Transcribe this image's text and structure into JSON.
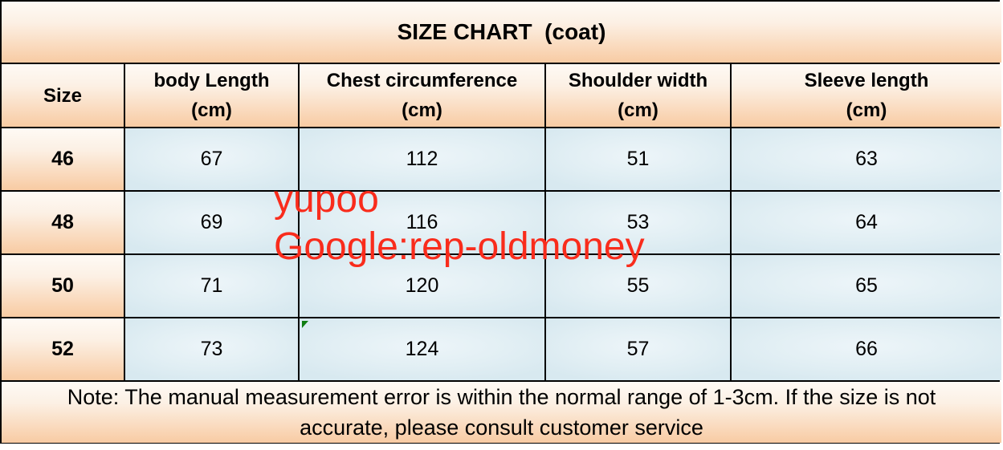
{
  "title": "SIZE CHART  (coat)",
  "header": {
    "columns": [
      {
        "label": "Size",
        "unit": ""
      },
      {
        "label": "body Length",
        "unit": "(cm)"
      },
      {
        "label": "Chest circumference",
        "unit": "(cm)"
      },
      {
        "label": "Shoulder width",
        "unit": "(cm)"
      },
      {
        "label": "Sleeve length",
        "unit": "(cm)"
      }
    ]
  },
  "rows": [
    {
      "size": "46",
      "body_length": "67",
      "chest": "112",
      "shoulder": "51",
      "sleeve": "63"
    },
    {
      "size": "48",
      "body_length": "69",
      "chest": "116",
      "shoulder": "53",
      "sleeve": "64"
    },
    {
      "size": "50",
      "body_length": "71",
      "chest": "120",
      "shoulder": "55",
      "sleeve": "65"
    },
    {
      "size": "52",
      "body_length": "73",
      "chest": "124",
      "shoulder": "57",
      "sleeve": "66"
    }
  ],
  "note": {
    "line1": "Note: The manual measurement error is within the normal range of 1-3cm. If the size is not",
    "line2": "accurate, please consult customer service"
  },
  "watermark": {
    "line1": "yupoo",
    "line2": "Google:rep-oldmoney",
    "color": "#f92c1c"
  }
}
